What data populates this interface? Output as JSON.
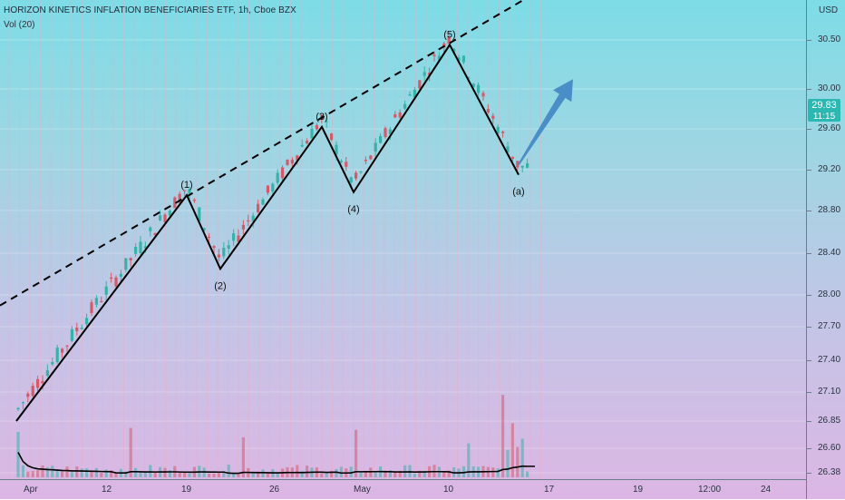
{
  "header": {
    "title": "HORIZON KINETICS INFLATION BENEFICIARIES ETF, 1h, Cboe BZX",
    "volume_label": "Vol (20)"
  },
  "price_axis": {
    "currency": "USD",
    "last_price": "29.83",
    "last_time": "11:15"
  },
  "colors": {
    "up": "#36b3a8",
    "down": "#d45a6a",
    "wave": "#000000",
    "arrow": "#4a8ec8",
    "badge": "#2bb8b3"
  },
  "chart_data": {
    "type": "candlestick",
    "title": "HORIZON KINETICS INFLATION BENEFICIARIES ETF, 1h, Cboe BZX",
    "ylabel": "USD",
    "y_ticks": [
      "30.50",
      "30.00",
      "29.60",
      "29.20",
      "28.80",
      "28.40",
      "28.00",
      "27.70",
      "27.40",
      "27.10",
      "26.85",
      "26.60",
      "26.38"
    ],
    "x_ticks": [
      "Apr",
      "12",
      "19",
      "26",
      "May",
      "10",
      "17",
      "19",
      "12:00",
      "24"
    ],
    "elliott_wave": [
      {
        "label": "",
        "x": "Apr 1",
        "y": 26.85
      },
      {
        "label": "(1)",
        "x": "Apr 19",
        "y": 28.95
      },
      {
        "label": "(2)",
        "x": "Apr 23",
        "y": 28.25
      },
      {
        "label": "(3)",
        "x": "May 4",
        "y": 29.62
      },
      {
        "label": "(4)",
        "x": "May 7",
        "y": 28.98
      },
      {
        "label": "(5)",
        "x": "May 10",
        "y": 30.45
      },
      {
        "label": "(a)",
        "x": "May 14",
        "y": 29.15
      }
    ],
    "trend_line": {
      "style": "dashed",
      "from": {
        "x": "Mar 31",
        "y": 27.9
      },
      "to": {
        "x": "May 18",
        "y": 31.3
      }
    },
    "projection_arrow": {
      "from": {
        "x": "May 14",
        "y": 29.25
      },
      "to": {
        "x": "May 17",
        "y": 30.1
      }
    },
    "volume_ma": 20,
    "grid": true
  }
}
